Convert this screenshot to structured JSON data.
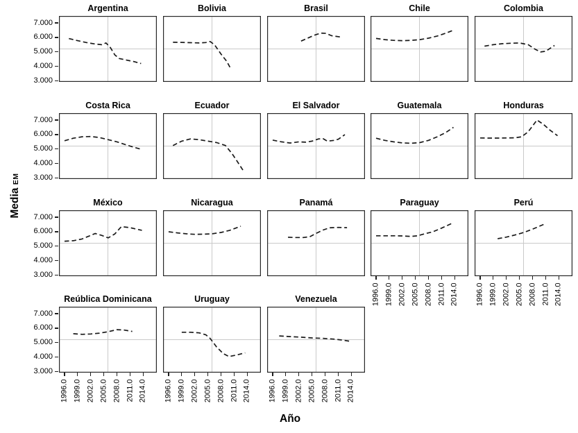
{
  "chart_data": {
    "type": "line",
    "layout": "trellis_small_multiples",
    "rows": 4,
    "cols": 5,
    "xlabel": "Año",
    "ylabel": "Media",
    "ylabel_subscript": "EM",
    "x_tick_labels": [
      "1996.0",
      "1999.0",
      "2002.0",
      "2005.0",
      "2008.0",
      "2011.0",
      "2014.0"
    ],
    "y_tick_labels": [
      "7.000",
      "6.000",
      "5.000",
      "4.000",
      "3.000"
    ],
    "y_tick_values": [
      7,
      6,
      5,
      4,
      3
    ],
    "xlim": [
      1994.7,
      2016.1
    ],
    "ylim": [
      2.94,
      7.48
    ],
    "grid": "center_crosshair",
    "gridline_color": "#c9c9c9",
    "line_style": "dashed",
    "line_color": "#1a1a1a",
    "border_color": "#262626",
    "panels": [
      {
        "name": "Argentina",
        "points": [
          [
            1997,
            5.92
          ],
          [
            1999,
            5.78
          ],
          [
            2001,
            5.65
          ],
          [
            2003,
            5.55
          ],
          [
            2004.5,
            5.5
          ],
          [
            2005.5,
            5.62
          ],
          [
            2006.5,
            5.3
          ],
          [
            2007.5,
            4.8
          ],
          [
            2008.5,
            4.55
          ],
          [
            2010,
            4.45
          ],
          [
            2012,
            4.33
          ],
          [
            2013.5,
            4.2
          ]
        ]
      },
      {
        "name": "Bolivia",
        "points": [
          [
            1997,
            5.67
          ],
          [
            1999,
            5.66
          ],
          [
            2001,
            5.64
          ],
          [
            2003,
            5.62
          ],
          [
            2004.5,
            5.65
          ],
          [
            2005.5,
            5.72
          ],
          [
            2006.5,
            5.5
          ],
          [
            2008,
            4.85
          ],
          [
            2009.3,
            4.35
          ],
          [
            2010.3,
            3.8
          ]
        ]
      },
      {
        "name": "Brasil",
        "points": [
          [
            2002.5,
            5.75
          ],
          [
            2004,
            5.95
          ],
          [
            2005.5,
            6.15
          ],
          [
            2007,
            6.3
          ],
          [
            2008.2,
            6.28
          ],
          [
            2009.5,
            6.12
          ],
          [
            2011.5,
            6.03
          ]
        ]
      },
      {
        "name": "Chile",
        "points": [
          [
            1996,
            5.93
          ],
          [
            1998,
            5.85
          ],
          [
            2000,
            5.8
          ],
          [
            2002,
            5.78
          ],
          [
            2004,
            5.8
          ],
          [
            2006,
            5.85
          ],
          [
            2008,
            5.95
          ],
          [
            2010,
            6.1
          ],
          [
            2012,
            6.3
          ],
          [
            2013.7,
            6.5
          ]
        ]
      },
      {
        "name": "Colombia",
        "points": [
          [
            1997,
            5.4
          ],
          [
            1999,
            5.5
          ],
          [
            2001,
            5.57
          ],
          [
            2003,
            5.6
          ],
          [
            2005,
            5.62
          ],
          [
            2007,
            5.5
          ],
          [
            2008.5,
            5.2
          ],
          [
            2009.8,
            5.0
          ],
          [
            2011,
            5.05
          ],
          [
            2013,
            5.45
          ]
        ]
      },
      {
        "name": "Costa Rica",
        "points": [
          [
            1996,
            5.58
          ],
          [
            1998,
            5.75
          ],
          [
            2000,
            5.85
          ],
          [
            2002,
            5.87
          ],
          [
            2004,
            5.8
          ],
          [
            2006,
            5.65
          ],
          [
            2008,
            5.5
          ],
          [
            2010,
            5.3
          ],
          [
            2012,
            5.12
          ],
          [
            2013.7,
            4.97
          ]
        ]
      },
      {
        "name": "Ecuador",
        "points": [
          [
            1997,
            5.25
          ],
          [
            1999,
            5.55
          ],
          [
            2001,
            5.7
          ],
          [
            2003,
            5.65
          ],
          [
            2005,
            5.55
          ],
          [
            2007,
            5.45
          ],
          [
            2009,
            5.25
          ],
          [
            2010.5,
            4.7
          ],
          [
            2011.5,
            4.25
          ],
          [
            2013,
            3.55
          ]
        ]
      },
      {
        "name": "El Salvador",
        "points": [
          [
            1996,
            5.62
          ],
          [
            1998,
            5.5
          ],
          [
            2000,
            5.42
          ],
          [
            2002,
            5.5
          ],
          [
            2003.5,
            5.48
          ],
          [
            2005,
            5.55
          ],
          [
            2006.5,
            5.7
          ],
          [
            2007.5,
            5.72
          ],
          [
            2008.5,
            5.55
          ],
          [
            2010,
            5.6
          ],
          [
            2011,
            5.68
          ],
          [
            2012.5,
            6.0
          ]
        ]
      },
      {
        "name": "Guatemala",
        "points": [
          [
            1996,
            5.75
          ],
          [
            1998,
            5.6
          ],
          [
            2000,
            5.5
          ],
          [
            2002,
            5.43
          ],
          [
            2004,
            5.4
          ],
          [
            2006,
            5.45
          ],
          [
            2008,
            5.6
          ],
          [
            2010,
            5.85
          ],
          [
            2012,
            6.15
          ],
          [
            2013.7,
            6.5
          ]
        ]
      },
      {
        "name": "Honduras",
        "points": [
          [
            1996,
            5.77
          ],
          [
            1998,
            5.76
          ],
          [
            2000,
            5.76
          ],
          [
            2002,
            5.77
          ],
          [
            2004,
            5.78
          ],
          [
            2005.5,
            5.85
          ],
          [
            2007,
            6.2
          ],
          [
            2009,
            7.0
          ],
          [
            2010.5,
            6.7
          ],
          [
            2012,
            6.3
          ],
          [
            2013.7,
            5.92
          ]
        ]
      },
      {
        "name": "México",
        "points": [
          [
            1996,
            5.35
          ],
          [
            1998,
            5.38
          ],
          [
            2000,
            5.5
          ],
          [
            2002,
            5.75
          ],
          [
            2003,
            5.88
          ],
          [
            2004.5,
            5.75
          ],
          [
            2006,
            5.58
          ],
          [
            2007.5,
            5.85
          ],
          [
            2009,
            6.35
          ],
          [
            2011,
            6.28
          ],
          [
            2013.7,
            6.1
          ]
        ]
      },
      {
        "name": "Nicaragua",
        "points": [
          [
            1996,
            6.0
          ],
          [
            1998,
            5.92
          ],
          [
            2000,
            5.86
          ],
          [
            2002,
            5.82
          ],
          [
            2004,
            5.83
          ],
          [
            2006,
            5.86
          ],
          [
            2008,
            5.95
          ],
          [
            2010,
            6.1
          ],
          [
            2012.5,
            6.38
          ]
        ]
      },
      {
        "name": "Panamá",
        "points": [
          [
            1999.5,
            5.62
          ],
          [
            2001,
            5.6
          ],
          [
            2003,
            5.6
          ],
          [
            2004.5,
            5.66
          ],
          [
            2006,
            5.9
          ],
          [
            2007.5,
            6.12
          ],
          [
            2009,
            6.27
          ],
          [
            2011,
            6.3
          ],
          [
            2013,
            6.28
          ]
        ]
      },
      {
        "name": "Paraguay",
        "points": [
          [
            1996,
            5.72
          ],
          [
            1998,
            5.72
          ],
          [
            2000,
            5.72
          ],
          [
            2002,
            5.71
          ],
          [
            2004,
            5.68
          ],
          [
            2005.5,
            5.72
          ],
          [
            2007,
            5.85
          ],
          [
            2009,
            6.0
          ],
          [
            2011,
            6.25
          ],
          [
            2013.5,
            6.6
          ]
        ]
      },
      {
        "name": "Perú",
        "points": [
          [
            2000,
            5.52
          ],
          [
            2002,
            5.63
          ],
          [
            2004,
            5.78
          ],
          [
            2006,
            5.95
          ],
          [
            2008,
            6.18
          ],
          [
            2010.5,
            6.5
          ]
        ]
      },
      {
        "name": "Reública Dominicana",
        "points": [
          [
            1998,
            5.62
          ],
          [
            2000,
            5.58
          ],
          [
            2002,
            5.6
          ],
          [
            2004,
            5.66
          ],
          [
            2006,
            5.76
          ],
          [
            2008,
            5.9
          ],
          [
            2009.5,
            5.88
          ],
          [
            2011.5,
            5.78
          ]
        ]
      },
      {
        "name": "Uruguay",
        "points": [
          [
            1999,
            5.72
          ],
          [
            2001,
            5.72
          ],
          [
            2003,
            5.68
          ],
          [
            2004.5,
            5.55
          ],
          [
            2005.5,
            5.3
          ],
          [
            2007,
            4.7
          ],
          [
            2008.5,
            4.25
          ],
          [
            2009.8,
            4.05
          ],
          [
            2011.5,
            4.15
          ],
          [
            2013.5,
            4.3
          ]
        ]
      },
      {
        "name": "Venezuela",
        "points": [
          [
            1997.5,
            5.47
          ],
          [
            2000,
            5.42
          ],
          [
            2002.5,
            5.38
          ],
          [
            2005,
            5.33
          ],
          [
            2007.5,
            5.3
          ],
          [
            2010,
            5.25
          ],
          [
            2012,
            5.18
          ],
          [
            2014,
            5.08
          ]
        ]
      }
    ]
  }
}
